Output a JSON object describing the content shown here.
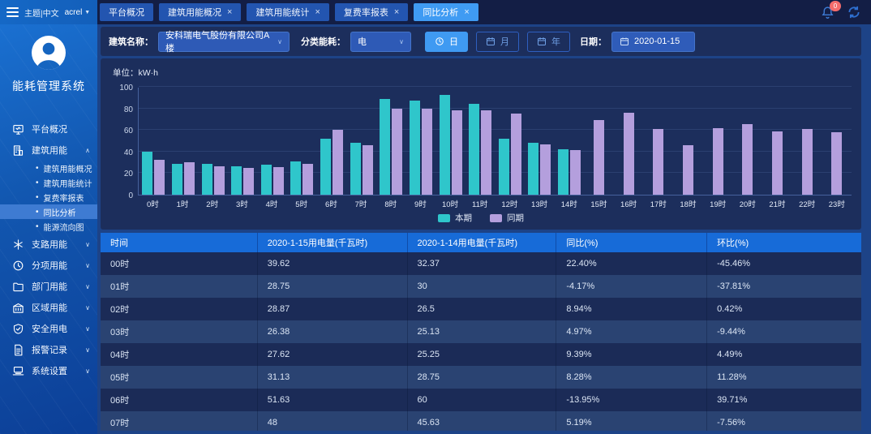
{
  "topbar": {
    "theme_label": "主题|中文",
    "user_label": "acrel",
    "notification_count": "0",
    "icons": {
      "menu": "hamburger-icon",
      "notifications": "bell-icon",
      "refresh": "refresh-icon"
    },
    "tabs": [
      {
        "label": "平台概况",
        "closable": false,
        "active": false
      },
      {
        "label": "建筑用能概况",
        "closable": true,
        "active": false
      },
      {
        "label": "建筑用能统计",
        "closable": true,
        "active": false
      },
      {
        "label": "复费率报表",
        "closable": true,
        "active": false
      },
      {
        "label": "同比分析",
        "closable": true,
        "active": true
      }
    ]
  },
  "sidebar": {
    "app_title": "能耗管理系统",
    "items": [
      {
        "label": "平台概况",
        "icon": "monitor-icon"
      },
      {
        "label": "建筑用能",
        "icon": "building-icon",
        "expanded": true,
        "children": [
          {
            "label": "建筑用能概况",
            "active": false
          },
          {
            "label": "建筑用能统计",
            "active": false
          },
          {
            "label": "复费率报表",
            "active": false
          },
          {
            "label": "同比分析",
            "active": true
          },
          {
            "label": "能源流向图",
            "active": false
          }
        ]
      },
      {
        "label": "支路用能",
        "icon": "branch-icon",
        "expanded": false
      },
      {
        "label": "分项用能",
        "icon": "category-icon",
        "expanded": false
      },
      {
        "label": "部门用能",
        "icon": "folder-icon",
        "expanded": false
      },
      {
        "label": "区域用能",
        "icon": "region-icon",
        "expanded": false
      },
      {
        "label": "安全用电",
        "icon": "shield-icon",
        "expanded": false
      },
      {
        "label": "报警记录",
        "icon": "alarm-record-icon",
        "expanded": false
      },
      {
        "label": "系统设置",
        "icon": "settings-icon",
        "expanded": false
      }
    ]
  },
  "filters": {
    "building_label": "建筑名称：",
    "building_value": "安科瑞电气股份有限公司A楼",
    "energy_label": "分类能耗：",
    "energy_value": "电",
    "period_buttons": [
      {
        "label": "日",
        "icon": "clock-icon",
        "active": true
      },
      {
        "label": "月",
        "icon": "calendar-icon",
        "active": false
      },
      {
        "label": "年",
        "icon": "calendar-icon",
        "active": false
      }
    ],
    "date_label": "日期：",
    "date_value": "2020-01-15",
    "date_icon": "calendar-icon"
  },
  "chart_data": {
    "type": "bar",
    "unit_label": "单位：kW·h",
    "ylim": [
      0,
      100
    ],
    "yticks": [
      0,
      20,
      40,
      60,
      80,
      100
    ],
    "grid": true,
    "legend_position": "bottom",
    "categories": [
      "0时",
      "1时",
      "2时",
      "3时",
      "4时",
      "5时",
      "6时",
      "7时",
      "8时",
      "9时",
      "10时",
      "11时",
      "12时",
      "13时",
      "14时",
      "15时",
      "16时",
      "17时",
      "18时",
      "19时",
      "20时",
      "21时",
      "22时",
      "23时"
    ],
    "series": [
      {
        "name": "本期",
        "color": "#2fc6cb",
        "values": [
          39.62,
          28.75,
          28.87,
          26.38,
          27.62,
          31.13,
          51.63,
          48,
          89,
          87,
          92.5,
          84.5,
          52,
          48,
          42,
          null,
          null,
          null,
          null,
          null,
          null,
          null,
          null,
          null
        ]
      },
      {
        "name": "同期",
        "color": "#b49fdd",
        "values": [
          32.37,
          30,
          26.5,
          25.13,
          25.25,
          28.75,
          60,
          45.63,
          79.5,
          79.5,
          78.5,
          78,
          75,
          46.5,
          41.5,
          69,
          76,
          61,
          46,
          62,
          65.5,
          58.5,
          61,
          58
        ]
      }
    ]
  },
  "table": {
    "headers": [
      "时间",
      "2020-1-15用电量(千瓦时)",
      "2020-1-14用电量(千瓦时)",
      "同比(%)",
      "环比(%)"
    ],
    "rows": [
      [
        "00时",
        "39.62",
        "32.37",
        "22.40%",
        "-45.46%"
      ],
      [
        "01时",
        "28.75",
        "30",
        "-4.17%",
        "-37.81%"
      ],
      [
        "02时",
        "28.87",
        "26.5",
        "8.94%",
        "0.42%"
      ],
      [
        "03时",
        "26.38",
        "25.13",
        "4.97%",
        "-9.44%"
      ],
      [
        "04时",
        "27.62",
        "25.25",
        "9.39%",
        "4.49%"
      ],
      [
        "05时",
        "31.13",
        "28.75",
        "8.28%",
        "11.28%"
      ],
      [
        "06时",
        "51.63",
        "60",
        "-13.95%",
        "39.71%"
      ],
      [
        "07时",
        "48",
        "45.63",
        "5.19%",
        "-7.56%"
      ]
    ]
  }
}
